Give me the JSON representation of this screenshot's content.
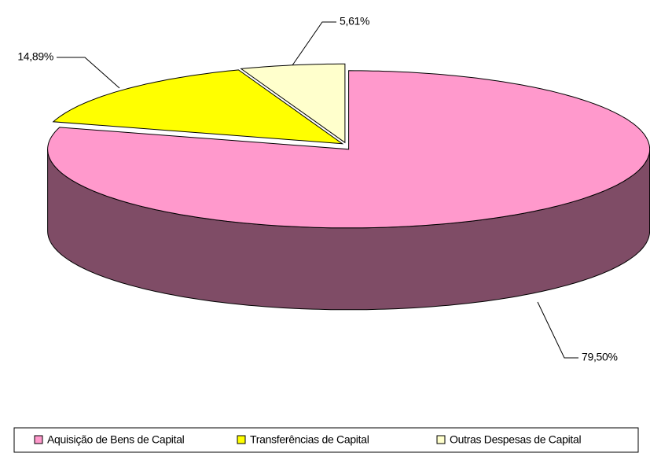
{
  "chart_data": {
    "type": "pie",
    "categories": [
      "Aquisição de Bens de Capital",
      "Transferências de Capital",
      "Outras Despesas de Capital"
    ],
    "values": [
      79.5,
      14.89,
      5.61
    ],
    "value_labels": [
      "79,50%",
      "14,89%",
      "5,61%"
    ],
    "colors": [
      "#FF99CC",
      "#FFFF00",
      "#FFFFCC"
    ],
    "legend": "bottom"
  }
}
